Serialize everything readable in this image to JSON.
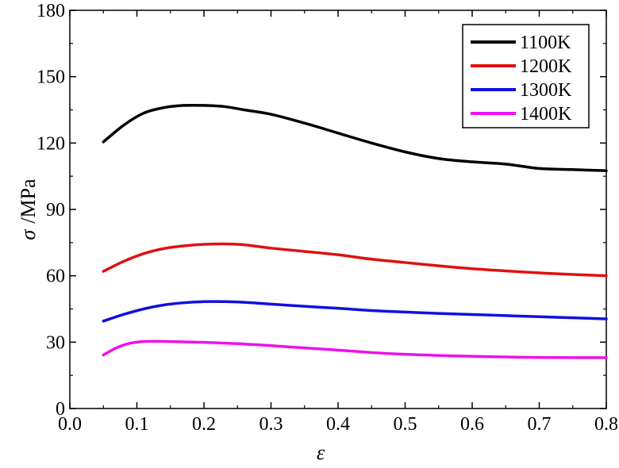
{
  "chart_data": {
    "type": "line",
    "title": "",
    "xlabel": "ε",
    "ylabel_symbol": "σ",
    "ylabel_unit": "/MPa",
    "xlim": [
      0.0,
      0.8
    ],
    "ylim": [
      0,
      180
    ],
    "xticks": [
      0.0,
      0.1,
      0.2,
      0.3,
      0.4,
      0.5,
      0.6,
      0.7,
      0.8
    ],
    "xtick_labels": [
      "0.0",
      "0.1",
      "0.2",
      "0.3",
      "0.4",
      "0.5",
      "0.6",
      "0.7",
      "0.8"
    ],
    "yticks": [
      0,
      30,
      60,
      90,
      120,
      150,
      180
    ],
    "ytick_labels": [
      "0",
      "30",
      "60",
      "90",
      "120",
      "150",
      "180"
    ],
    "grid": false,
    "legend_position": "top-right",
    "series": [
      {
        "name": "1100K",
        "color": "#000000",
        "points": [
          [
            0.05,
            120.5
          ],
          [
            0.08,
            128
          ],
          [
            0.11,
            133.5
          ],
          [
            0.14,
            136
          ],
          [
            0.17,
            137
          ],
          [
            0.2,
            137
          ],
          [
            0.23,
            136.5
          ],
          [
            0.26,
            135
          ],
          [
            0.3,
            133
          ],
          [
            0.35,
            129
          ],
          [
            0.4,
            124.5
          ],
          [
            0.45,
            120
          ],
          [
            0.5,
            116
          ],
          [
            0.55,
            113
          ],
          [
            0.6,
            111.5
          ],
          [
            0.65,
            110.5
          ],
          [
            0.7,
            108.5
          ],
          [
            0.75,
            108
          ],
          [
            0.8,
            107.5
          ]
        ]
      },
      {
        "name": "1200K",
        "color": "#e01010",
        "points": [
          [
            0.05,
            62
          ],
          [
            0.08,
            66.5
          ],
          [
            0.11,
            70
          ],
          [
            0.14,
            72.3
          ],
          [
            0.17,
            73.5
          ],
          [
            0.2,
            74.2
          ],
          [
            0.23,
            74.4
          ],
          [
            0.26,
            74
          ],
          [
            0.3,
            72.5
          ],
          [
            0.35,
            71
          ],
          [
            0.4,
            69.5
          ],
          [
            0.45,
            67.5
          ],
          [
            0.5,
            66
          ],
          [
            0.55,
            64.5
          ],
          [
            0.6,
            63.2
          ],
          [
            0.65,
            62.2
          ],
          [
            0.7,
            61.3
          ],
          [
            0.75,
            60.6
          ],
          [
            0.8,
            60
          ]
        ]
      },
      {
        "name": "1300K",
        "color": "#1010e0",
        "points": [
          [
            0.05,
            39.5
          ],
          [
            0.08,
            42.5
          ],
          [
            0.11,
            45
          ],
          [
            0.14,
            46.8
          ],
          [
            0.17,
            47.8
          ],
          [
            0.2,
            48.3
          ],
          [
            0.23,
            48.3
          ],
          [
            0.26,
            48
          ],
          [
            0.3,
            47.2
          ],
          [
            0.35,
            46.2
          ],
          [
            0.4,
            45.3
          ],
          [
            0.45,
            44.3
          ],
          [
            0.5,
            43.6
          ],
          [
            0.55,
            43
          ],
          [
            0.6,
            42.5
          ],
          [
            0.65,
            42
          ],
          [
            0.7,
            41.5
          ],
          [
            0.75,
            41
          ],
          [
            0.8,
            40.5
          ]
        ]
      },
      {
        "name": "1400K",
        "color": "#ee10ee",
        "points": [
          [
            0.05,
            24.2
          ],
          [
            0.07,
            27.5
          ],
          [
            0.09,
            29.5
          ],
          [
            0.11,
            30.3
          ],
          [
            0.13,
            30.4
          ],
          [
            0.16,
            30.2
          ],
          [
            0.2,
            29.9
          ],
          [
            0.25,
            29.3
          ],
          [
            0.3,
            28.4
          ],
          [
            0.35,
            27.4
          ],
          [
            0.4,
            26.4
          ],
          [
            0.45,
            25.3
          ],
          [
            0.5,
            24.5
          ],
          [
            0.55,
            24
          ],
          [
            0.6,
            23.6
          ],
          [
            0.65,
            23.3
          ],
          [
            0.7,
            23.1
          ],
          [
            0.75,
            23
          ],
          [
            0.8,
            23
          ]
        ]
      }
    ]
  }
}
